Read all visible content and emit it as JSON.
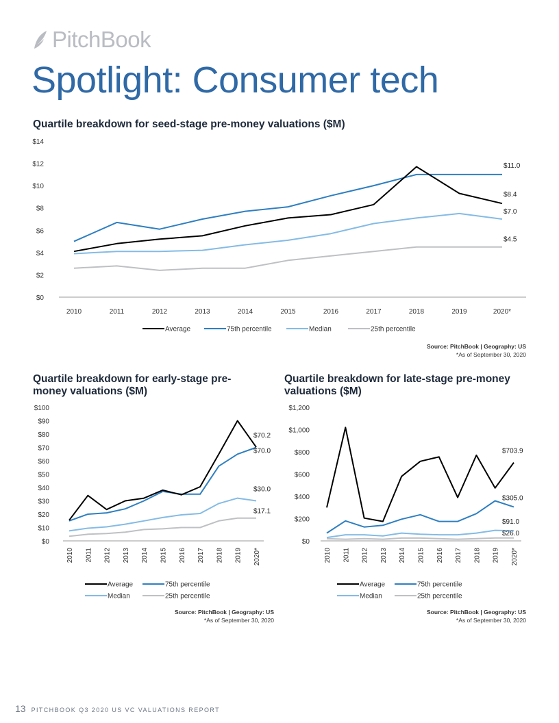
{
  "header": {
    "logo_text": "PitchBook",
    "page_title": "Spotlight: Consumer tech"
  },
  "colors": {
    "Average": "#000000",
    "75th percentile": "#2e7fc1",
    "Median": "#84bbe5",
    "25th percentile": "#bfc0c4",
    "title_blue": "#2f69a6"
  },
  "chart_data": [
    {
      "type": "line",
      "title": "Quartile breakdown for seed-stage pre-money valuations ($M)",
      "categories": [
        "2010",
        "2011",
        "2012",
        "2013",
        "2014",
        "2015",
        "2016",
        "2017",
        "2018",
        "2019",
        "2020*"
      ],
      "y_ticks": [
        "$0",
        "$2",
        "$4",
        "$6",
        "$8",
        "$10",
        "$12",
        "$14"
      ],
      "ylim": [
        0,
        14
      ],
      "series": [
        {
          "name": "Average",
          "values": [
            4.1,
            4.8,
            5.2,
            5.5,
            6.4,
            7.1,
            7.4,
            8.3,
            11.7,
            9.3,
            8.4
          ]
        },
        {
          "name": "75th percentile",
          "values": [
            5.0,
            6.7,
            6.1,
            7.0,
            7.7,
            8.1,
            9.1,
            10.0,
            11.0,
            11.0,
            11.0
          ]
        },
        {
          "name": "Median",
          "values": [
            3.9,
            4.1,
            4.1,
            4.2,
            4.7,
            5.1,
            5.7,
            6.6,
            7.1,
            7.5,
            7.0
          ]
        },
        {
          "name": "25th percentile",
          "values": [
            2.6,
            2.8,
            2.4,
            2.6,
            2.6,
            3.3,
            3.7,
            4.1,
            4.5,
            4.5,
            4.5
          ]
        }
      ],
      "end_labels": [
        "$8.4",
        "$11.0",
        "$7.0",
        "$4.5"
      ],
      "legend": [
        "Average",
        "75th percentile",
        "Median",
        "25th percentile"
      ],
      "source": "Source: PitchBook | Geography: US",
      "asof": "*As of September 30, 2020"
    },
    {
      "type": "line",
      "title": "Quartile breakdown for early-stage pre-money valuations ($M)",
      "categories": [
        "2010",
        "2011",
        "2012",
        "2013",
        "2014",
        "2015",
        "2016",
        "2017",
        "2018",
        "2019",
        "2020*"
      ],
      "y_ticks": [
        "$0",
        "$10",
        "$20",
        "$30",
        "$40",
        "$50",
        "$60",
        "$70",
        "$80",
        "$90",
        "$100"
      ],
      "ylim": [
        0,
        100
      ],
      "series": [
        {
          "name": "Average",
          "values": [
            15.5,
            34.0,
            23.5,
            30.0,
            32.0,
            38.0,
            34.5,
            40.5,
            65.0,
            90.0,
            70.2
          ]
        },
        {
          "name": "75th percentile",
          "values": [
            15.0,
            20.0,
            21.0,
            24.0,
            30.0,
            37.0,
            35.0,
            35.0,
            56.0,
            65.0,
            70.0
          ]
        },
        {
          "name": "Median",
          "values": [
            7.5,
            9.5,
            10.5,
            12.5,
            15.0,
            17.5,
            19.5,
            20.5,
            28.0,
            32.0,
            30.0
          ]
        },
        {
          "name": "25th percentile",
          "values": [
            3.5,
            5.0,
            5.5,
            6.5,
            8.5,
            9.0,
            10.0,
            10.0,
            15.0,
            17.1,
            17.1
          ]
        }
      ],
      "end_labels": [
        "$70.2",
        "$70.0",
        "$30.0",
        "$17.1"
      ],
      "legend": [
        "Average",
        "75th percentile",
        "Median",
        "25th percentile"
      ],
      "source": "Source: PitchBook | Geography: US",
      "asof": "*As of September 30, 2020"
    },
    {
      "type": "line",
      "title": "Quartile breakdown for late-stage pre-money valuations ($M)",
      "categories": [
        "2010",
        "2011",
        "2012",
        "2013",
        "2014",
        "2015",
        "2016",
        "2017",
        "2018",
        "2019",
        "2020*"
      ],
      "y_ticks": [
        "$0",
        "$200",
        "$400",
        "$600",
        "$800",
        "$1,000",
        "$1,200"
      ],
      "ylim": [
        0,
        1200
      ],
      "series": [
        {
          "name": "Average",
          "values": [
            300,
            1020,
            205,
            175,
            580,
            715,
            755,
            390,
            770,
            475,
            703.9
          ]
        },
        {
          "name": "75th percentile",
          "values": [
            70,
            180,
            125,
            140,
            195,
            235,
            175,
            175,
            245,
            360,
            305.0
          ]
        },
        {
          "name": "Median",
          "values": [
            30,
            55,
            55,
            45,
            70,
            60,
            55,
            55,
            70,
            95,
            91.0
          ]
        },
        {
          "name": "25th percentile",
          "values": [
            20,
            15,
            20,
            15,
            25,
            25,
            20,
            15,
            20,
            26,
            26.0
          ]
        }
      ],
      "end_labels": [
        "$703.9",
        "$305.0",
        "$91.0",
        "$26.0"
      ],
      "legend": [
        "Average",
        "75th percentile",
        "Median",
        "25th percentile"
      ],
      "source": "Source: PitchBook | Geography: US",
      "asof": "*As of September 30, 2020"
    }
  ],
  "footer": {
    "page_number": "13",
    "report_name": "PITCHBOOK Q3 2020 US VC VALUATIONS REPORT"
  }
}
